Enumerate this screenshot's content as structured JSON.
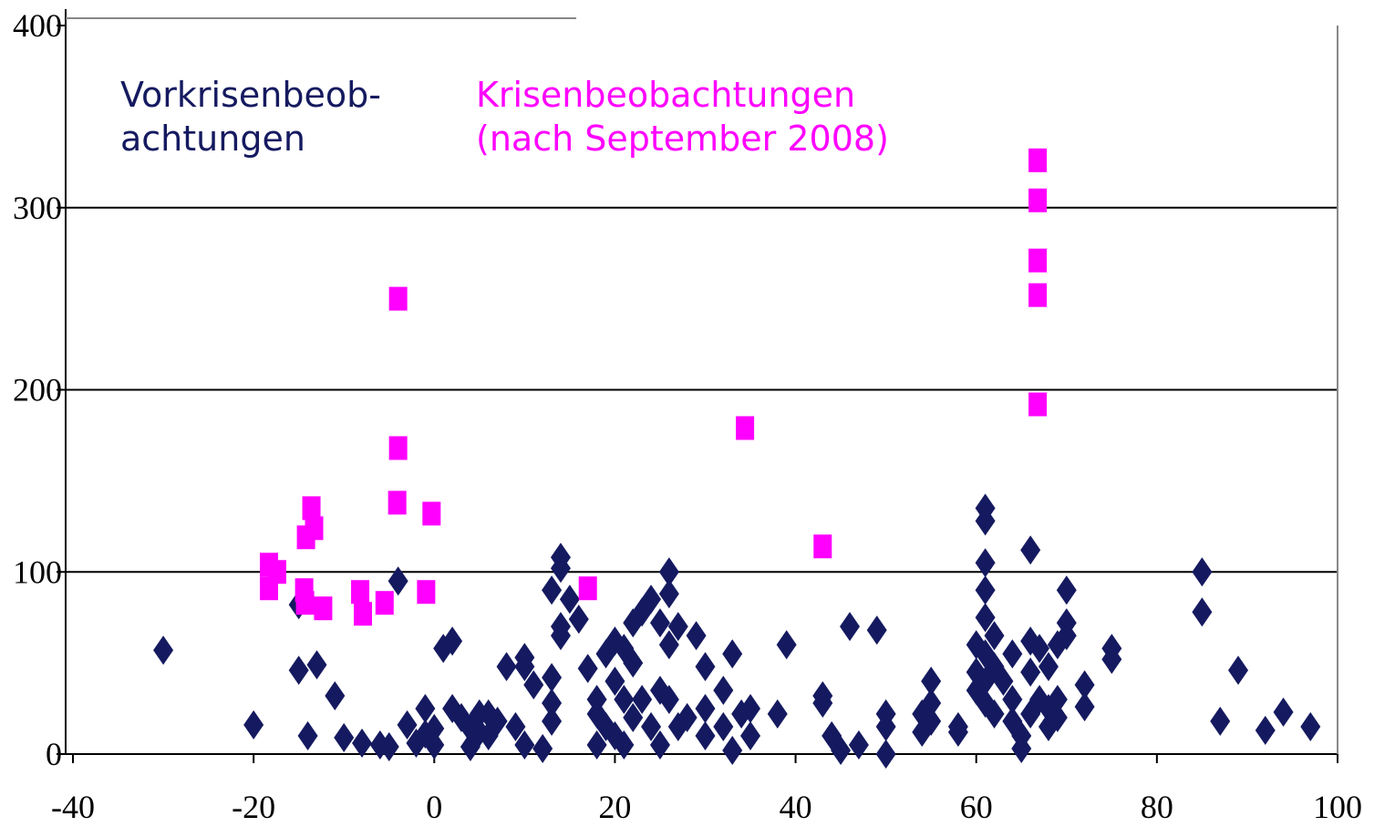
{
  "chart_data": {
    "type": "scatter",
    "xlim": [
      -40,
      100
    ],
    "xticks": [
      -40,
      -20,
      0,
      20,
      40,
      60,
      80,
      100
    ],
    "ylim": [
      0,
      400
    ],
    "yticks": [
      0,
      100,
      200,
      300,
      400
    ],
    "grid": true,
    "series": [
      {
        "name": "Vorkrisenbeob-\nachtungen",
        "color": "#151a60",
        "marker": "diamond",
        "x": [
          -30,
          -20,
          -15,
          -15,
          -14,
          -13,
          -11,
          -10,
          -8,
          -6,
          -5,
          -4,
          -3,
          -2,
          -1,
          -1,
          0,
          0,
          1,
          2,
          2,
          3,
          4,
          4,
          5,
          5,
          6,
          6,
          7,
          8,
          9,
          10,
          10,
          11,
          10,
          12,
          13,
          13,
          13,
          13,
          14,
          14,
          14,
          14,
          15,
          16,
          17,
          18,
          18,
          18,
          19,
          19,
          20,
          20,
          20,
          21,
          21,
          21,
          22,
          22,
          22,
          23,
          23,
          24,
          24,
          25,
          25,
          25,
          26,
          26,
          26,
          26,
          27,
          27,
          28,
          29,
          30,
          30,
          30,
          32,
          32,
          33,
          33,
          34,
          35,
          35,
          38,
          39,
          43,
          43,
          44,
          45,
          46,
          47,
          49,
          50,
          50,
          50,
          54,
          54,
          55,
          55,
          55,
          58,
          58,
          60,
          60,
          60,
          61,
          61,
          61,
          61,
          61,
          61,
          61,
          61,
          62,
          62,
          62,
          63,
          64,
          64,
          64,
          65,
          65,
          66,
          66,
          66,
          66,
          67,
          67,
          68,
          68,
          68,
          69,
          69,
          69,
          70,
          70,
          70,
          72,
          72,
          75,
          75,
          85,
          85,
          87,
          89,
          92,
          94,
          97
        ],
        "y": [
          57,
          16,
          82,
          46,
          10,
          49,
          32,
          9,
          6,
          5,
          4,
          95,
          16,
          6,
          25,
          11,
          14,
          5,
          58,
          62,
          25,
          20,
          14,
          4,
          22,
          12,
          22,
          10,
          18,
          48,
          15,
          48,
          53,
          38,
          5,
          3,
          18,
          42,
          28,
          90,
          108,
          102,
          70,
          65,
          85,
          74,
          47,
          30,
          22,
          5,
          55,
          15,
          62,
          40,
          10,
          58,
          30,
          5,
          50,
          20,
          72,
          78,
          30,
          15,
          85,
          72,
          35,
          5,
          100,
          88,
          60,
          30,
          70,
          15,
          20,
          65,
          48,
          25,
          10,
          35,
          15,
          55,
          2,
          22,
          25,
          10,
          22,
          60,
          32,
          28,
          10,
          2,
          70,
          5,
          68,
          22,
          15,
          0,
          22,
          12,
          40,
          28,
          18,
          15,
          12,
          60,
          45,
          35,
          135,
          128,
          105,
          90,
          75,
          55,
          40,
          28,
          65,
          48,
          22,
          40,
          55,
          30,
          18,
          10,
          3,
          112,
          62,
          45,
          22,
          58,
          30,
          48,
          25,
          15,
          60,
          30,
          20,
          90,
          72,
          65,
          38,
          26,
          58,
          52,
          100,
          78,
          18,
          46,
          13,
          23,
          15
        ]
      },
      {
        "name": "Krisenbeobachtungen\n(nach September 2008)",
        "color": "#ff00ff",
        "marker": "square",
        "x": [
          -4,
          -4,
          -4.1,
          -0.3,
          -0.9,
          -13.6,
          -13.3,
          -14.2,
          -18.3,
          -17.4,
          -18.3,
          -14.4,
          -14.3,
          -12.3,
          -8.2,
          -7.9,
          -5.5,
          17,
          34.4,
          43,
          66.8,
          66.8,
          66.8,
          66.8,
          66.8
        ],
        "y": [
          250,
          168,
          138,
          132,
          89,
          135,
          124,
          119,
          104,
          100,
          91,
          90,
          83,
          80,
          89,
          77,
          83,
          91,
          179,
          114,
          326,
          304,
          271,
          252,
          192
        ]
      }
    ]
  }
}
